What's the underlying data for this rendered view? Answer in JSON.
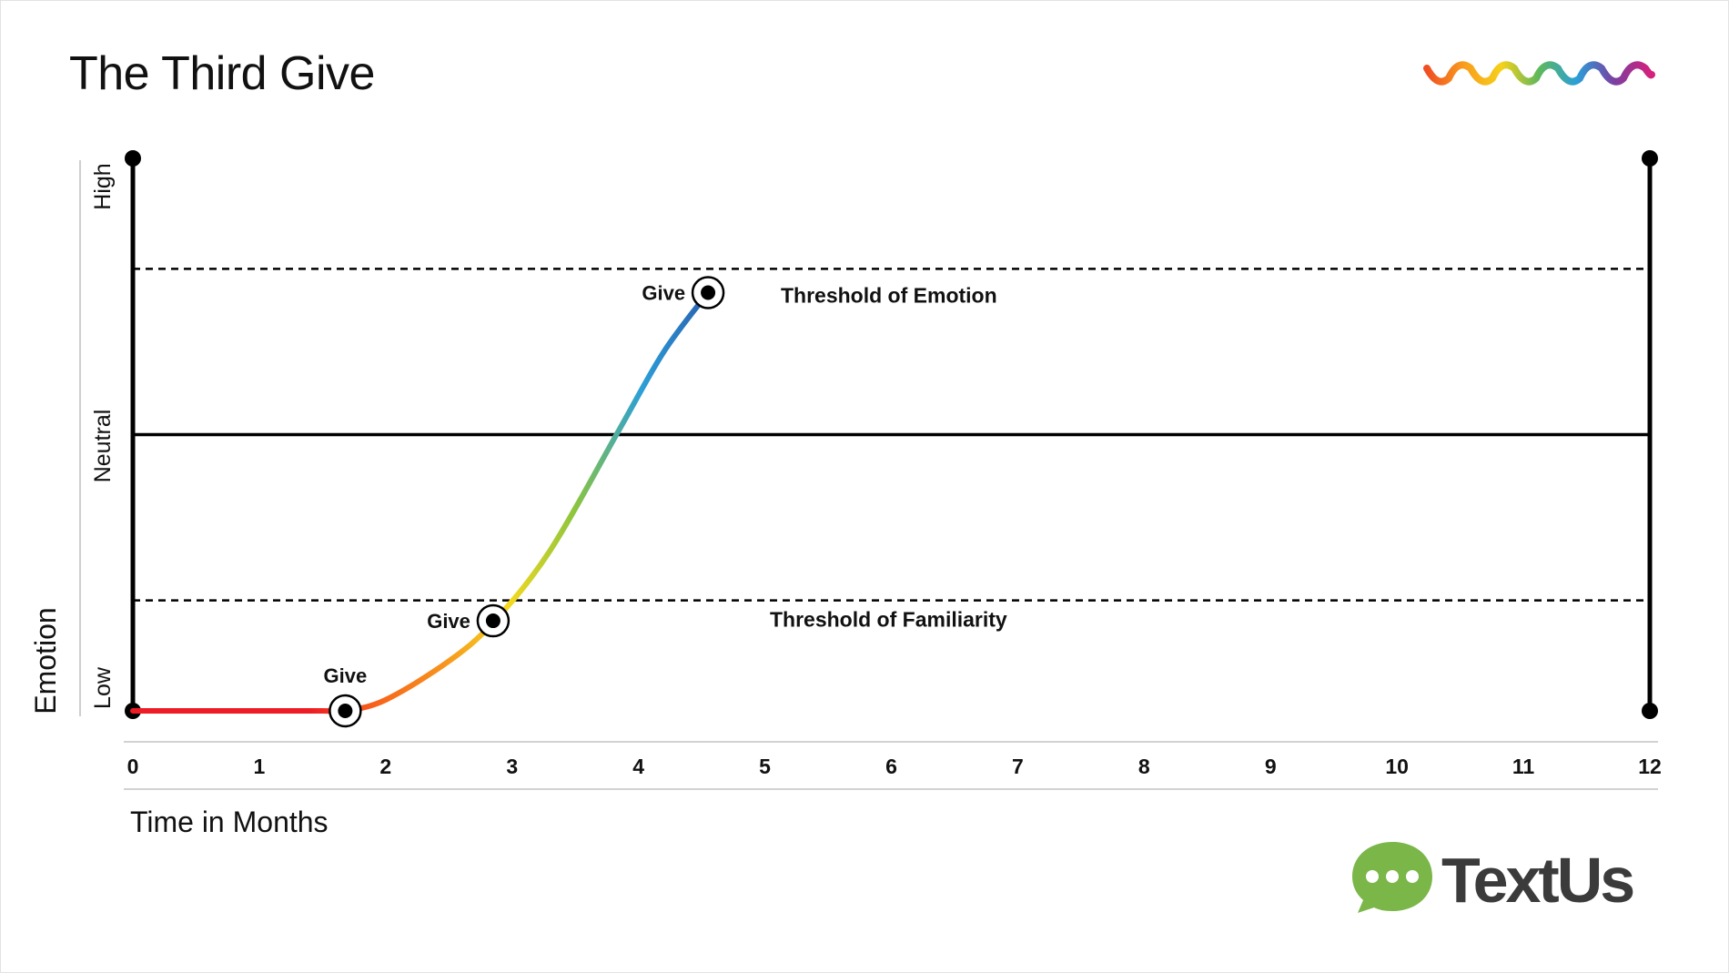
{
  "chart_data": {
    "type": "line",
    "title": "The Third Give",
    "xlabel": "Time in Months",
    "ylabel": "Emotion",
    "x_ticks": [
      "0",
      "1",
      "2",
      "3",
      "4",
      "5",
      "6",
      "7",
      "8",
      "9",
      "10",
      "11",
      "12"
    ],
    "xlim": [
      0,
      12
    ],
    "ylim": [
      0,
      1
    ],
    "y_levels": [
      {
        "label": "Low",
        "value": 0.0
      },
      {
        "label": "Neutral",
        "value": 0.5
      },
      {
        "label": "High",
        "value": 1.0
      }
    ],
    "thresholds": [
      {
        "label": "Threshold of Familiarity",
        "value": 0.2
      },
      {
        "label": "Threshold of Emotion",
        "value": 0.8
      }
    ],
    "series": [
      {
        "x": [
          0,
          0.5,
          1.0,
          1.5,
          1.68,
          2.0,
          2.5,
          2.85,
          3.3,
          3.85,
          4.2,
          4.55
        ],
        "y": [
          0.0,
          0.0,
          0.0,
          0.0,
          0.0,
          0.02,
          0.09,
          0.16,
          0.29,
          0.51,
          0.65,
          0.757
        ]
      }
    ],
    "annotations": [
      {
        "label": "Give",
        "x": 1.68,
        "y": 0.0
      },
      {
        "label": "Give",
        "x": 2.85,
        "y": 0.163
      },
      {
        "label": "Give",
        "x": 4.55,
        "y": 0.757
      }
    ],
    "line_gradient": [
      "#ee1c25",
      "#f7631b",
      "#f7931d",
      "#f5d91e",
      "#8bc53f",
      "#2b9fd8",
      "#2a5fb0"
    ],
    "grid": false,
    "legend": "none"
  },
  "logos": {
    "wave_colors": [
      "#f04e23",
      "#f99d1c",
      "#f5d11a",
      "#5cb85c",
      "#2b9fd8",
      "#7a3fa1",
      "#d6207b"
    ],
    "brand_name": "TextUs",
    "brand_icon": "chat-bubble-icon",
    "brand_icon_color": "#7ab648",
    "brand_text_color": "#3b3b3b"
  }
}
